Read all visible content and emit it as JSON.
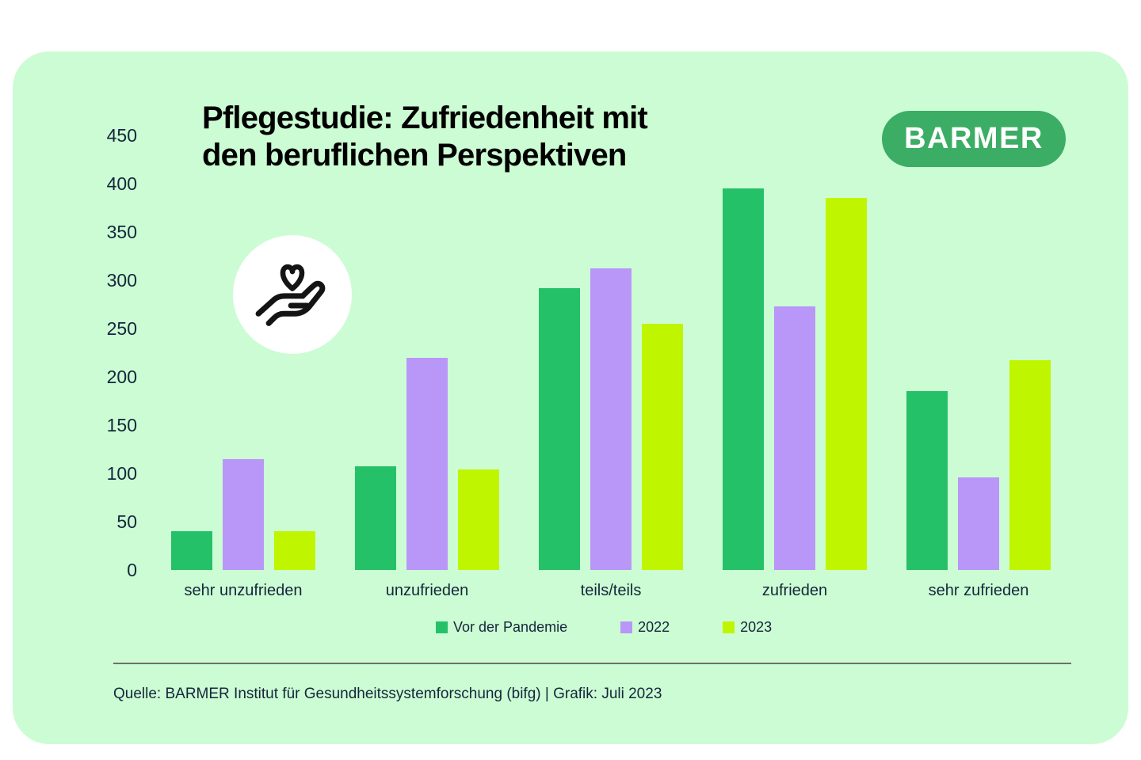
{
  "header": {
    "title": "Pflegestudie: Zufriedenheit mit\nden beruflichen Perspektiven",
    "brand": "BARMER"
  },
  "icon": {
    "name": "hand-holding-heart-icon"
  },
  "chart_data": {
    "type": "bar",
    "title": "Pflegestudie: Zufriedenheit mit den beruflichen Perspektiven",
    "categories": [
      "sehr unzufrieden",
      "unzufrieden",
      "teils/teils",
      "zufrieden",
      "sehr zufrieden"
    ],
    "series": [
      {
        "name": "Vor der Pandemie",
        "color": "#25c169",
        "values": [
          40,
          107,
          292,
          395,
          185
        ]
      },
      {
        "name": "2022",
        "color": "#b897f8",
        "values": [
          115,
          220,
          312,
          273,
          96
        ]
      },
      {
        "name": "2023",
        "color": "#c0f500",
        "values": [
          40,
          104,
          255,
          385,
          217
        ]
      }
    ],
    "ylabel": "",
    "xlabel": "",
    "ylim": [
      0,
      450
    ],
    "ytick_step": 50,
    "grid": false,
    "legend_position": "bottom"
  },
  "footer": {
    "source": "Quelle: BARMER Institut für Gesundheitssystemforschung (bifg) | Grafik: Juli 2023"
  },
  "colors": {
    "card_bg": "#ccfcd3",
    "logo_bg": "#3bad64",
    "title_text": "#000000",
    "axis_text": "#14263c",
    "divider": "#6f6f6f"
  }
}
